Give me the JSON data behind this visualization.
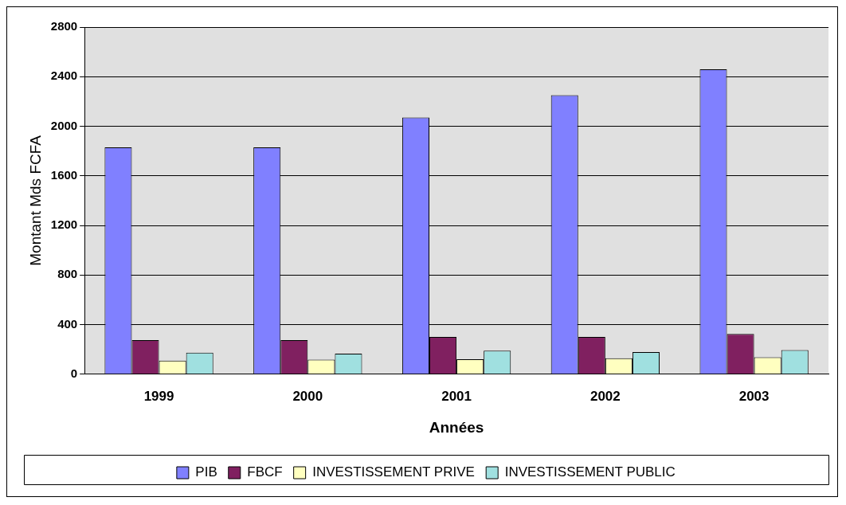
{
  "chart_data": {
    "type": "bar",
    "xlabel": "Années",
    "ylabel": "Montant Mds FCFA",
    "categories": [
      "1999",
      "2000",
      "2001",
      "2002",
      "2003"
    ],
    "series": [
      {
        "name": "PIB",
        "color": "#8080ff",
        "values": [
          1830,
          1830,
          2070,
          2250,
          2460
        ]
      },
      {
        "name": "FBCF",
        "color": "#802060",
        "values": [
          275,
          275,
          300,
          300,
          325
        ]
      },
      {
        "name": "INVESTISSEMENT PRIVE",
        "color": "#ffffc0",
        "values": [
          110,
          117,
          121,
          129,
          137
        ]
      },
      {
        "name": "INVESTISSEMENT PUBLIC",
        "color": "#a0e0e0",
        "values": [
          174,
          166,
          190,
          178,
          194
        ]
      }
    ],
    "ylim": [
      0,
      2800
    ],
    "yticks": [
      0,
      400,
      800,
      1200,
      1600,
      2000,
      2400,
      2800
    ],
    "grid": "y",
    "legend": "bottom"
  }
}
